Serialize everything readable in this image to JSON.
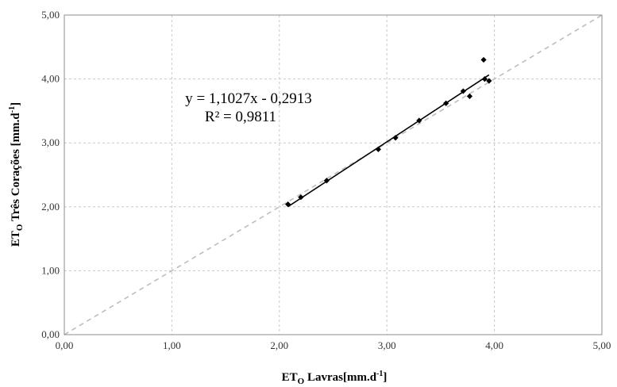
{
  "chart_data": {
    "type": "scatter",
    "xlabel": {
      "main": "ET",
      "sub": "O",
      "rest": " Lavras[mm.d",
      "sup": "-1",
      "end": "]"
    },
    "ylabel": {
      "main": "ET",
      "sub": "O",
      "rest": " Três Corações [mm.d",
      "sup": "-1",
      "end": "]"
    },
    "xlim": [
      0,
      5
    ],
    "ylim": [
      0,
      5
    ],
    "x_ticks": [
      "0,00",
      "1,00",
      "2,00",
      "3,00",
      "4,00",
      "5,00"
    ],
    "y_ticks": [
      "0,00",
      "1,00",
      "2,00",
      "3,00",
      "4,00",
      "5,00"
    ],
    "grid": true,
    "points": [
      {
        "x": 2.08,
        "y": 2.04
      },
      {
        "x": 2.2,
        "y": 2.15
      },
      {
        "x": 2.44,
        "y": 2.41
      },
      {
        "x": 2.92,
        "y": 2.9
      },
      {
        "x": 3.08,
        "y": 3.08
      },
      {
        "x": 3.3,
        "y": 3.35
      },
      {
        "x": 3.55,
        "y": 3.62
      },
      {
        "x": 3.71,
        "y": 3.81
      },
      {
        "x": 3.77,
        "y": 3.73
      },
      {
        "x": 3.9,
        "y": 4.3
      },
      {
        "x": 3.91,
        "y": 4.0
      },
      {
        "x": 3.95,
        "y": 3.97
      }
    ],
    "trendline": {
      "slope": 1.1027,
      "intercept": -0.2913,
      "x_range": [
        2.08,
        3.95
      ],
      "equation": "y = 1,1027x - 0,2913",
      "r_squared": "R² = 0,9811"
    },
    "reference_line": {
      "slope": 1,
      "intercept": 0,
      "style": "dashed",
      "color": "#bdbdbd"
    },
    "colors": {
      "points": "#000000",
      "trendline": "#000000",
      "grid": "#c8c8c8",
      "plot_border": "#8c8c8c"
    }
  }
}
